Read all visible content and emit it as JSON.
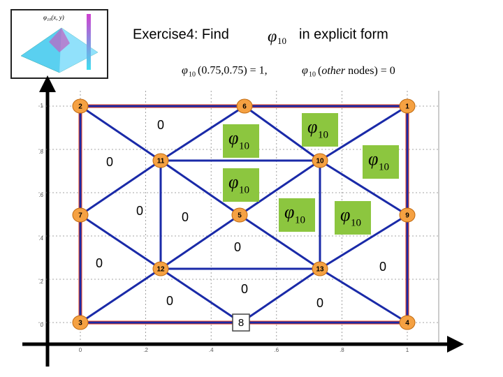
{
  "header": {
    "title_prefix": "Exercise4: Find",
    "title_suffix": "in explicit form",
    "phi": "φ",
    "phi_sub": "10",
    "formula_1": "(0.75,0.75) = 1,",
    "formula_2_pre": "(",
    "formula_2_italic": "other",
    "formula_2_post": " nodes) = 0",
    "thumb_label": "φ₁₀(x, y)"
  },
  "nodes": [
    {
      "label": "1"
    },
    {
      "label": "2"
    },
    {
      "label": "3"
    },
    {
      "label": "4"
    },
    {
      "label": "5"
    },
    {
      "label": "6"
    },
    {
      "label": "7"
    },
    {
      "label": "8"
    },
    {
      "label": "9"
    },
    {
      "label": "10"
    },
    {
      "label": "11"
    },
    {
      "label": "12"
    },
    {
      "label": "13"
    }
  ],
  "zero_labels": [
    "0",
    "0",
    "0",
    "0",
    "0",
    "0",
    "0",
    "0",
    "0",
    "0"
  ],
  "y_ticks": [
    "1",
    ".8",
    ".6",
    ".4",
    ".2",
    "0"
  ],
  "x_ticks": [
    "0",
    ".2",
    ".4",
    ".6",
    ".8",
    "1"
  ]
}
